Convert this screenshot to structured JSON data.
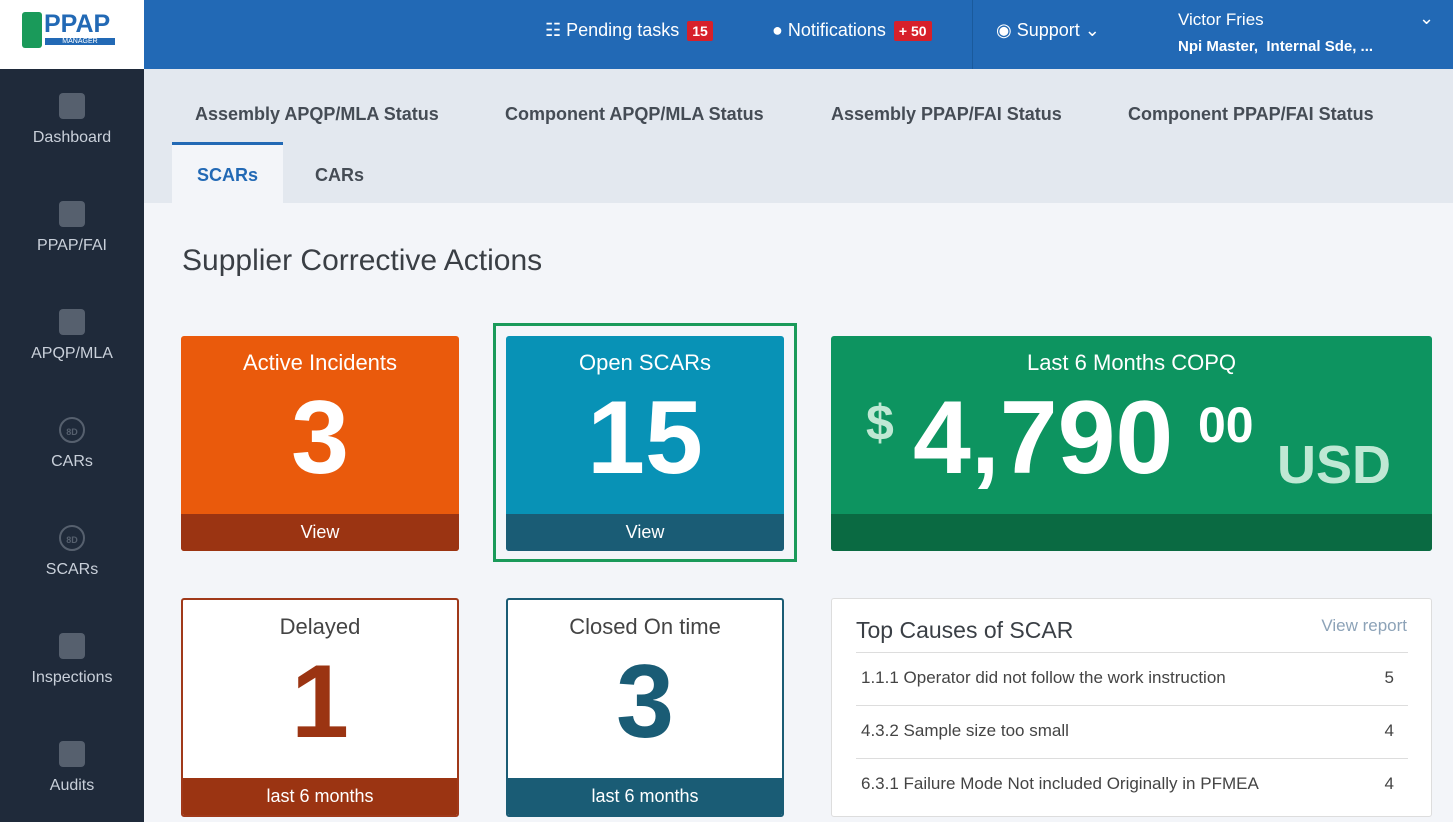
{
  "logo": {
    "title": "PPAP",
    "subtitle": "MANAGER"
  },
  "topbar": {
    "pending": {
      "label": "Pending tasks",
      "count": 15
    },
    "notifications": {
      "label": "Notifications",
      "count": "+ 50"
    },
    "support": "Support",
    "user": {
      "name": "Victor Fries",
      "roles": "Npi Master,  Internal Sde, ..."
    }
  },
  "sidebar": [
    {
      "label": "Dashboard"
    },
    {
      "label": "PPAP/FAI"
    },
    {
      "label": "APQP/MLA"
    },
    {
      "label": "CARs",
      "badge": "8D"
    },
    {
      "label": "SCARs",
      "badge": "8D"
    },
    {
      "label": "Inspections"
    },
    {
      "label": "Audits"
    }
  ],
  "tabs": {
    "row1": [
      "Assembly APQP/MLA Status",
      "Component APQP/MLA Status",
      "Assembly PPAP/FAI Status",
      "Component PPAP/FAI Status"
    ],
    "row2": [
      "SCARs",
      "CARs"
    ]
  },
  "heading": "Supplier Corrective Actions",
  "cards": [
    {
      "title": "Active Incidents",
      "value": 3,
      "footer": "View"
    },
    {
      "title": "Open SCARs",
      "value": 15,
      "footer": "View"
    },
    {
      "title": "Delayed",
      "value": 1,
      "footer": "last 6 months"
    },
    {
      "title": "Closed On time",
      "value": 3,
      "footer": "last 6 months"
    }
  ],
  "copq": {
    "title": "Last 6 Months COPQ",
    "symbol": "$",
    "whole": "4,790",
    "cents": "00",
    "currency": "USD"
  },
  "top_causes": {
    "title": "Top Causes of SCAR",
    "link": "View report",
    "rows": [
      {
        "cause": "1.1.1 Operator did not follow the work instruction",
        "count": 5
      },
      {
        "cause": "4.3.2 Sample size too small",
        "count": 4
      },
      {
        "cause": "6.3.1 Failure Mode Not included Originally in PFMEA",
        "count": 4
      }
    ]
  }
}
